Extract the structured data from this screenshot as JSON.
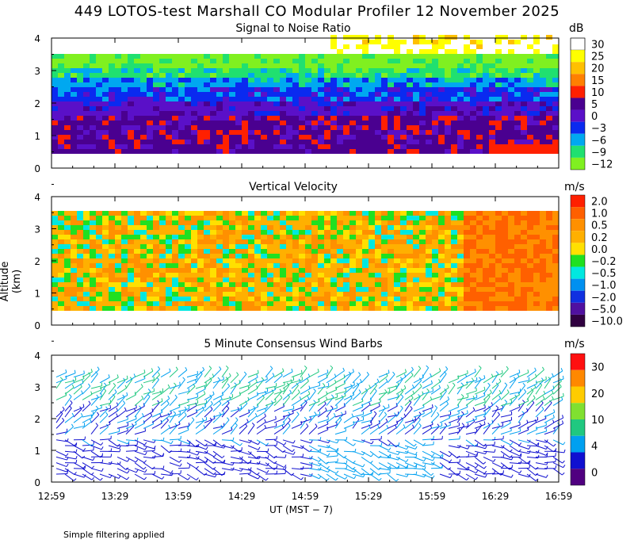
{
  "header": {
    "title": "449 LOTOS-test Marshall CO Modular Profiler 12 November 2025"
  },
  "footer": {
    "note": "Simple filtering applied"
  },
  "chart_data": [
    {
      "type": "heatmap",
      "title": "Signal to Noise Ratio",
      "unit": "dB",
      "ylim": [
        0,
        4
      ],
      "yticks": [
        "0",
        "1",
        "2",
        "3",
        "4"
      ],
      "colorbar": {
        "labels": [
          "30",
          "25",
          "20",
          "15",
          "10",
          "5",
          "0",
          "−3",
          "−6",
          "−9",
          "−12"
        ],
        "colors": [
          "#ffffff",
          "#ffff00",
          "#ffc000",
          "#ff8000",
          "#ff2000",
          "#4a0090",
          "#5a10c8",
          "#0a2af0",
          "#00a8f0",
          "#20e070",
          "#80f020"
        ]
      }
    },
    {
      "type": "heatmap",
      "title": "Vertical Velocity",
      "unit": "m/s",
      "ylim": [
        0,
        4
      ],
      "yticks": [
        "0",
        "1",
        "2",
        "3",
        "4"
      ],
      "colorbar": {
        "labels": [
          "2.0",
          "1.0",
          "0.5",
          "0.2",
          "0.0",
          "−0.2",
          "−0.5",
          "−1.0",
          "−2.0",
          "−5.0",
          "−10.0"
        ],
        "colors": [
          "#ff2000",
          "#ff6000",
          "#ff9000",
          "#ffb000",
          "#ffe000",
          "#20e020",
          "#00e8e0",
          "#0090f0",
          "#1030e0",
          "#5010a0",
          "#300040"
        ]
      }
    },
    {
      "type": "scatter",
      "title": "5 Minute Consensus Wind Barbs",
      "unit": "m/s",
      "ylim": [
        0,
        4
      ],
      "yticks": [
        "0",
        "1",
        "2",
        "3",
        "4"
      ],
      "colorbar": {
        "labels": [
          "30",
          "20",
          "10",
          "4",
          "0"
        ],
        "colors": [
          "#ff1010",
          "#ff8800",
          "#ffcc00",
          "#80e030",
          "#20c880",
          "#00a0f0",
          "#1010d0",
          "#500080"
        ]
      }
    }
  ],
  "xaxis": {
    "ticks": [
      "12:59",
      "13:29",
      "13:59",
      "14:29",
      "14:59",
      "15:29",
      "15:59",
      "16:29",
      "16:59"
    ],
    "label": "UT  (MST − 7)"
  },
  "yaxis": {
    "label": "Altitude (km)"
  }
}
